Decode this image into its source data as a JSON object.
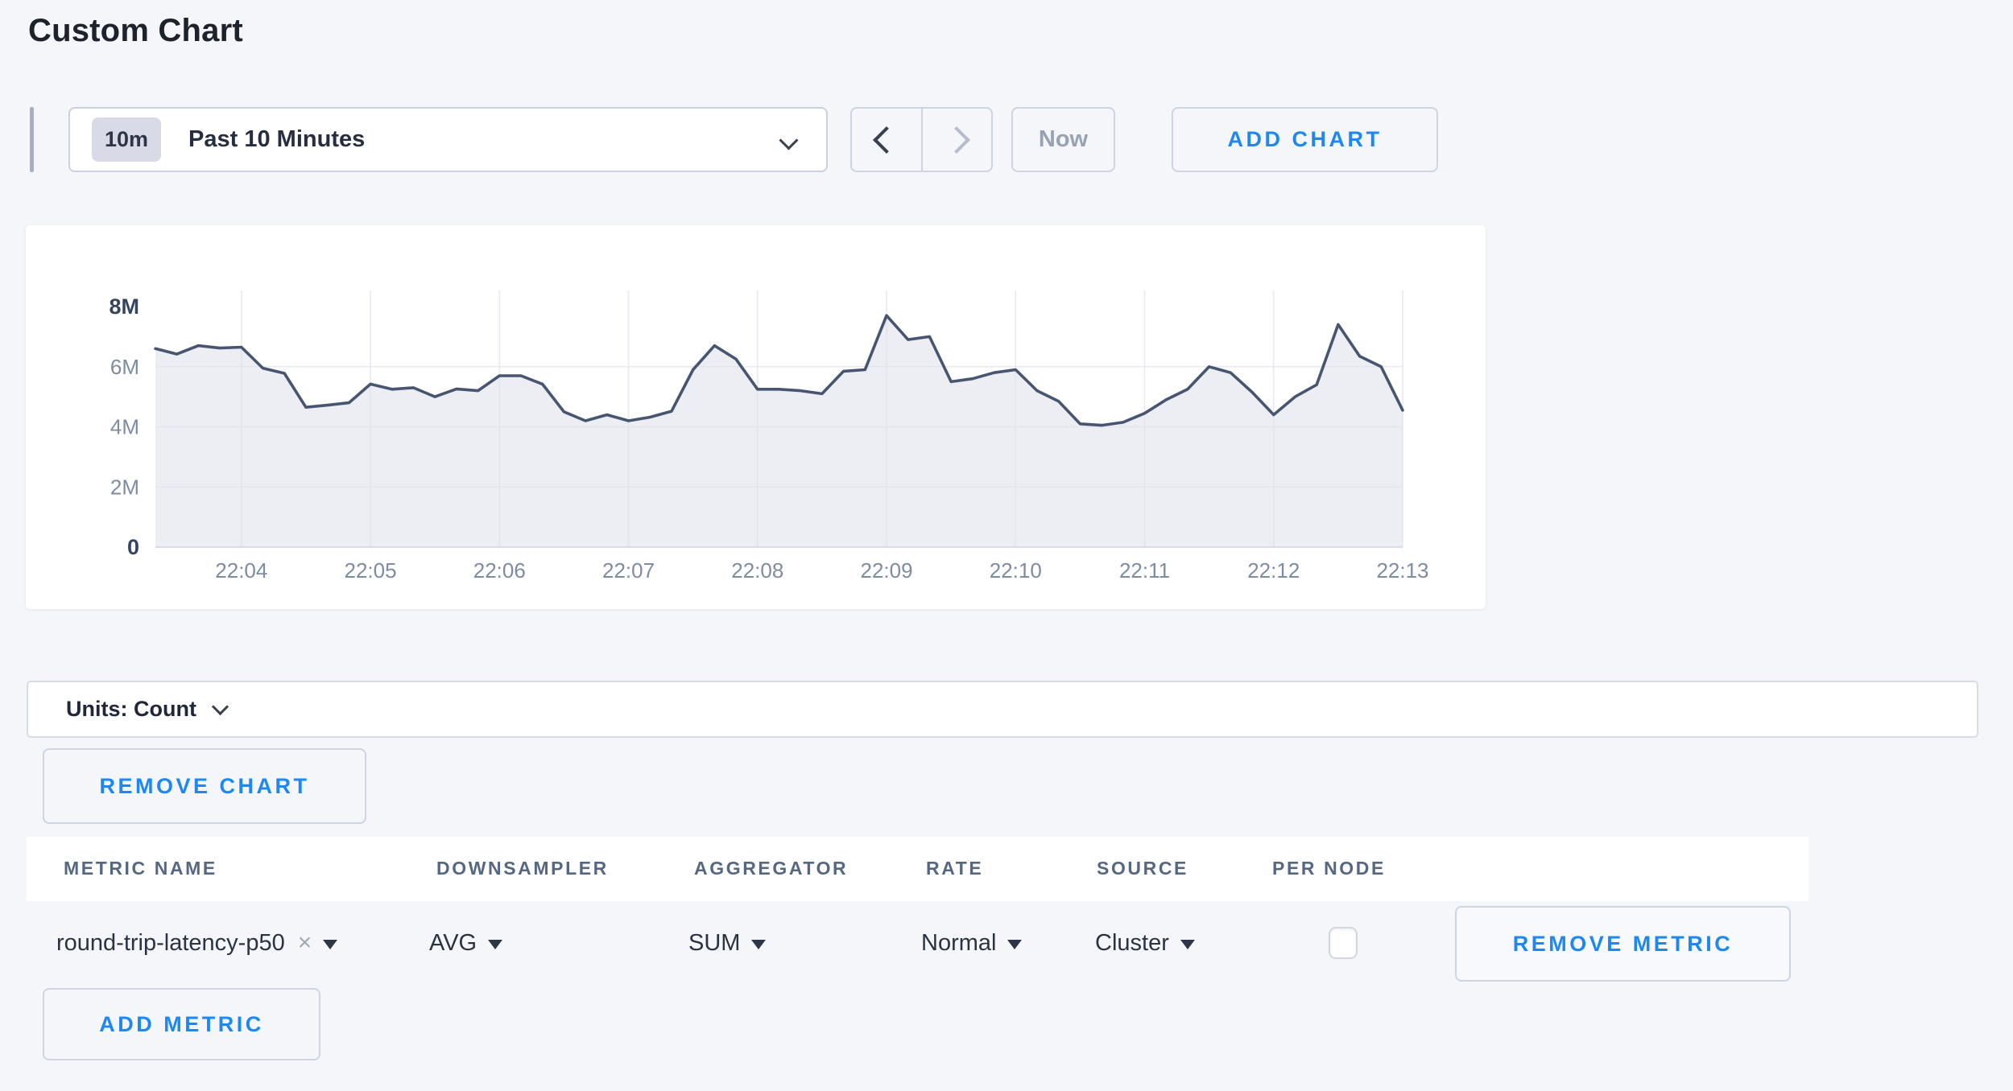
{
  "page": {
    "title": "Custom Chart"
  },
  "toolbar": {
    "time_range": {
      "badge": "10m",
      "label": "Past 10 Minutes"
    },
    "now_label": "Now",
    "add_chart_label": "ADD CHART"
  },
  "icons": {
    "time_range_chevron": "chevron-down",
    "prev_time": "chevron-left",
    "next_time": "chevron-right",
    "units_chevron": "chevron-down",
    "metric_clear": "x-cross",
    "select_caret": "triangle-down"
  },
  "units_bar": {
    "label": "Units: Count"
  },
  "remove_chart_label": "REMOVE CHART",
  "add_metric_label": "ADD METRIC",
  "metrics_table": {
    "columns": [
      "METRIC NAME",
      "DOWNSAMPLER",
      "AGGREGATOR",
      "RATE",
      "SOURCE",
      "PER NODE"
    ],
    "rows": [
      {
        "metric_name": "round-trip-latency-p50",
        "clear_symbol": "×",
        "downsampler": "AVG",
        "aggregator": "SUM",
        "rate": "Normal",
        "source": "Cluster",
        "per_node_checked": false,
        "remove_label": "REMOVE METRIC"
      }
    ]
  },
  "chart_data": {
    "type": "area",
    "title": "",
    "xlabel": "",
    "ylabel": "",
    "unit": "count",
    "ylim": [
      0,
      8000000
    ],
    "grid": true,
    "legend": "none",
    "y_ticks": [
      {
        "label": "8M",
        "value": 8000000,
        "emphasis": true
      },
      {
        "label": "6M",
        "value": 6000000,
        "emphasis": false
      },
      {
        "label": "4M",
        "value": 4000000,
        "emphasis": false
      },
      {
        "label": "2M",
        "value": 2000000,
        "emphasis": false
      },
      {
        "label": "0",
        "value": 0,
        "emphasis": true
      }
    ],
    "x_tick_labels": [
      "22:04",
      "22:05",
      "22:06",
      "22:07",
      "22:08",
      "22:09",
      "22:10",
      "22:11",
      "22:12",
      "22:13"
    ],
    "first_tick_index": 4,
    "tick_interval_points": 6,
    "sample_interval_seconds": 10,
    "series": [
      {
        "name": "round-trip-latency-p50",
        "values_millions": [
          6.6,
          6.42,
          6.7,
          6.62,
          6.65,
          5.95,
          5.78,
          4.65,
          4.72,
          4.8,
          5.42,
          5.25,
          5.3,
          5.0,
          5.26,
          5.2,
          5.7,
          5.7,
          5.42,
          4.5,
          4.2,
          4.4,
          4.2,
          4.32,
          4.52,
          5.9,
          6.7,
          6.25,
          5.25,
          5.25,
          5.2,
          5.1,
          5.85,
          5.9,
          7.7,
          6.9,
          7.0,
          5.5,
          5.6,
          5.8,
          5.9,
          5.2,
          4.85,
          4.1,
          4.05,
          4.15,
          4.45,
          4.9,
          5.25,
          6.0,
          5.8,
          5.15,
          4.4,
          5.0,
          5.4,
          7.4,
          6.35,
          6.0,
          4.55
        ]
      }
    ],
    "colors": {
      "line": "#475570",
      "fill": "#eceef4",
      "grid": "#dfe3ed",
      "axis_baseline": "#d7dbe7",
      "tick_label": "#7d8ca2",
      "tick_label_emphasis": "#36455f"
    }
  },
  "theme": {
    "accent_blue": "#1e88f0",
    "page_bg": "#f4f6fa",
    "card_bg": "#ffffff",
    "border": "#cdd4e2",
    "text_dark": "#262d3e"
  }
}
